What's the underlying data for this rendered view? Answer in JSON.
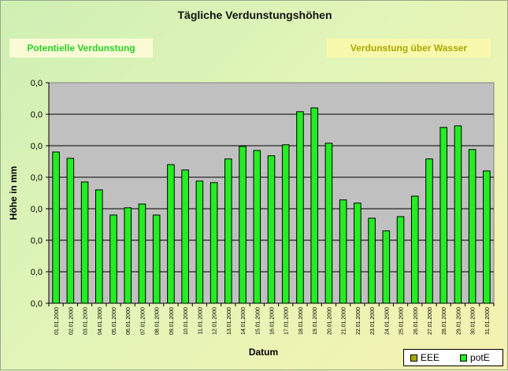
{
  "chart_data": {
    "type": "bar",
    "title": "Tägliche Verdunstungshöhen",
    "xlabel": "Datum",
    "ylabel": "Höhe in mm",
    "y_tick_labels": [
      "0,0",
      "0,0",
      "0,0",
      "0,0",
      "0,0",
      "0,0",
      "0,0",
      "0,0"
    ],
    "ylim": [
      0,
      7
    ],
    "grid": true,
    "legend_position": "bottom-right",
    "categories": [
      "01.01.2000",
      "02.01.2000",
      "03.01.2000",
      "04.01.2000",
      "05.01.2000",
      "06.01.2000",
      "07.01.2000",
      "08.01.2000",
      "09.01.2000",
      "10.01.2000",
      "11.01.2000",
      "12.01.2000",
      "13.01.2000",
      "14.01.2000",
      "15.01.2000",
      "16.01.2000",
      "17.01.2000",
      "18.01.2000",
      "19.01.2000",
      "20.01.2000",
      "21.01.2000",
      "22.01.2000",
      "23.01.2000",
      "24.01.2000",
      "25.01.2000",
      "26.01.2000",
      "27.01.2000",
      "28.01.2000",
      "29.01.2000",
      "30.01.2000",
      "31.01.2000"
    ],
    "series": [
      {
        "name": "EEE",
        "color": "#a8a800",
        "values": [
          0,
          0,
          0,
          0,
          0,
          0,
          0,
          0,
          0,
          0,
          0,
          0,
          0,
          0,
          0,
          0,
          0,
          0,
          0,
          0,
          0,
          0,
          0,
          0,
          0,
          0,
          0,
          0,
          0,
          0,
          0
        ]
      },
      {
        "name": "potE",
        "color": "#22ee22",
        "values": [
          4.8,
          4.6,
          3.85,
          3.6,
          2.8,
          3.03,
          3.15,
          2.8,
          4.4,
          4.23,
          3.88,
          3.83,
          4.58,
          4.98,
          4.85,
          4.68,
          5.03,
          6.08,
          6.2,
          5.08,
          3.28,
          3.18,
          2.7,
          2.3,
          2.75,
          3.4,
          4.58,
          5.58,
          5.63,
          4.88,
          4.2
        ]
      }
    ]
  },
  "ui": {
    "title": "Tägliche Verdunstungshöhen",
    "left_button": "Potentielle Verdunstung",
    "right_button": "Verdunstung über Wasser",
    "legend_eee": "EEE",
    "legend_pote": "potE"
  }
}
